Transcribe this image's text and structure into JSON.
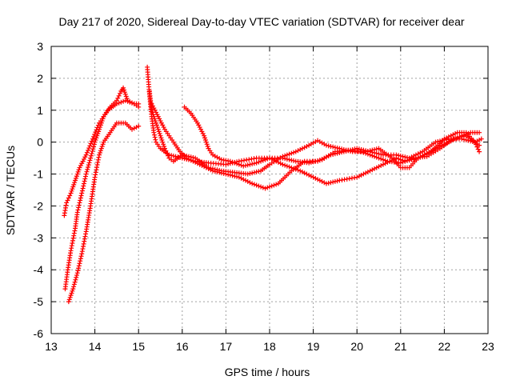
{
  "chart_data": {
    "type": "scatter",
    "title": "Day 217 of 2020, Sidereal Day-to-day VTEC variation (SDTVAR) for receiver dear",
    "xlabel": "GPS time / hours",
    "ylabel": "SDTVAR / TECUs",
    "xlim": [
      13,
      23
    ],
    "ylim": [
      -6,
      3
    ],
    "xticks": [
      "13",
      "14",
      "15",
      "16",
      "17",
      "18",
      "19",
      "20",
      "21",
      "22",
      "23"
    ],
    "yticks": [
      "-6",
      "-5",
      "-4",
      "-3",
      "-2",
      "-1",
      "0",
      "1",
      "2",
      "3"
    ],
    "grid": true,
    "marker": "plus",
    "color": "#ff0000",
    "series": [
      {
        "name": "track-1",
        "points": [
          [
            13.3,
            -2.3
          ],
          [
            13.35,
            -1.9
          ],
          [
            13.45,
            -1.6
          ],
          [
            13.55,
            -1.2
          ],
          [
            13.65,
            -0.8
          ],
          [
            13.8,
            -0.4
          ],
          [
            13.95,
            0.1
          ],
          [
            14.1,
            0.6
          ],
          [
            14.3,
            1.0
          ],
          [
            14.5,
            1.2
          ],
          [
            14.7,
            1.3
          ],
          [
            14.9,
            1.2
          ],
          [
            15.0,
            1.1
          ]
        ]
      },
      {
        "name": "track-2",
        "points": [
          [
            13.32,
            -4.6
          ],
          [
            13.38,
            -4.0
          ],
          [
            13.45,
            -3.4
          ],
          [
            13.55,
            -2.7
          ],
          [
            13.6,
            -2.2
          ],
          [
            13.7,
            -1.6
          ],
          [
            13.8,
            -1.0
          ],
          [
            13.9,
            -0.5
          ],
          [
            14.0,
            0.0
          ],
          [
            14.1,
            0.4
          ],
          [
            14.2,
            0.8
          ],
          [
            14.35,
            1.1
          ],
          [
            14.5,
            1.3
          ],
          [
            14.6,
            1.6
          ],
          [
            14.65,
            1.7
          ],
          [
            14.75,
            1.3
          ],
          [
            14.9,
            1.2
          ],
          [
            15.0,
            1.2
          ]
        ]
      },
      {
        "name": "track-3",
        "points": [
          [
            13.4,
            -5.0
          ],
          [
            13.5,
            -4.6
          ],
          [
            13.6,
            -4.1
          ],
          [
            13.7,
            -3.5
          ],
          [
            13.8,
            -2.8
          ],
          [
            13.9,
            -2.0
          ],
          [
            14.0,
            -1.1
          ],
          [
            14.1,
            -0.4
          ],
          [
            14.2,
            0.0
          ],
          [
            14.35,
            0.3
          ],
          [
            14.5,
            0.6
          ],
          [
            14.7,
            0.6
          ],
          [
            14.85,
            0.4
          ],
          [
            15.0,
            0.5
          ]
        ]
      },
      {
        "name": "track-4",
        "points": [
          [
            15.2,
            2.35
          ],
          [
            15.25,
            1.5
          ],
          [
            15.3,
            0.8
          ],
          [
            15.35,
            0.3
          ],
          [
            15.4,
            0.0
          ],
          [
            15.5,
            -0.2
          ],
          [
            15.7,
            -0.4
          ],
          [
            16.0,
            -0.5
          ],
          [
            16.3,
            -0.6
          ],
          [
            16.6,
            -0.65
          ],
          [
            17.0,
            -0.7
          ],
          [
            17.3,
            -0.6
          ],
          [
            17.7,
            -0.5
          ],
          [
            18.0,
            -0.5
          ],
          [
            18.3,
            -0.7
          ],
          [
            18.7,
            -0.9
          ],
          [
            19.0,
            -1.1
          ],
          [
            19.3,
            -1.3
          ],
          [
            19.6,
            -1.2
          ],
          [
            20.0,
            -1.1
          ],
          [
            20.3,
            -0.9
          ],
          [
            20.6,
            -0.7
          ],
          [
            20.9,
            -0.5
          ],
          [
            21.1,
            -0.6
          ],
          [
            21.4,
            -0.5
          ],
          [
            21.8,
            -0.2
          ],
          [
            22.1,
            0.0
          ],
          [
            22.4,
            0.2
          ],
          [
            22.6,
            0.3
          ],
          [
            22.8,
            0.3
          ]
        ]
      },
      {
        "name": "track-5",
        "points": [
          [
            15.25,
            1.6
          ],
          [
            15.3,
            1.0
          ],
          [
            15.4,
            0.6
          ],
          [
            15.5,
            0.2
          ],
          [
            15.6,
            -0.2
          ],
          [
            15.7,
            -0.5
          ],
          [
            15.8,
            -0.6
          ],
          [
            16.0,
            -0.4
          ],
          [
            16.3,
            -0.5
          ],
          [
            16.6,
            -0.8
          ],
          [
            16.9,
            -0.9
          ],
          [
            17.2,
            -0.95
          ],
          [
            17.5,
            -1.0
          ],
          [
            17.8,
            -0.9
          ],
          [
            18.0,
            -0.7
          ],
          [
            18.3,
            -0.45
          ],
          [
            18.6,
            -0.3
          ],
          [
            18.9,
            -0.1
          ],
          [
            19.1,
            0.05
          ],
          [
            19.3,
            -0.1
          ],
          [
            19.6,
            -0.2
          ],
          [
            19.9,
            -0.3
          ],
          [
            20.2,
            -0.3
          ],
          [
            20.5,
            -0.2
          ],
          [
            20.8,
            -0.5
          ],
          [
            21.0,
            -0.8
          ],
          [
            21.2,
            -0.8
          ],
          [
            21.4,
            -0.5
          ],
          [
            21.7,
            -0.3
          ],
          [
            22.0,
            0.1
          ],
          [
            22.3,
            0.3
          ],
          [
            22.5,
            0.3
          ],
          [
            22.7,
            0.0
          ],
          [
            22.8,
            -0.3
          ]
        ]
      },
      {
        "name": "track-6",
        "points": [
          [
            15.3,
            1.2
          ],
          [
            15.45,
            0.8
          ],
          [
            15.6,
            0.4
          ],
          [
            15.8,
            0.0
          ],
          [
            15.95,
            -0.3
          ],
          [
            16.1,
            -0.5
          ],
          [
            16.4,
            -0.7
          ],
          [
            16.7,
            -0.9
          ],
          [
            17.0,
            -1.0
          ],
          [
            17.3,
            -1.1
          ],
          [
            17.6,
            -1.3
          ],
          [
            17.9,
            -1.45
          ],
          [
            18.2,
            -1.3
          ],
          [
            18.5,
            -0.9
          ],
          [
            18.8,
            -0.6
          ],
          [
            19.1,
            -0.6
          ],
          [
            19.4,
            -0.4
          ],
          [
            19.7,
            -0.3
          ],
          [
            20.0,
            -0.2
          ],
          [
            20.3,
            -0.3
          ],
          [
            20.6,
            -0.4
          ],
          [
            20.9,
            -0.4
          ],
          [
            21.2,
            -0.5
          ],
          [
            21.5,
            -0.3
          ],
          [
            21.8,
            0.0
          ],
          [
            22.1,
            0.1
          ],
          [
            22.4,
            0.1
          ],
          [
            22.7,
            0.0
          ],
          [
            22.85,
            0.1
          ]
        ]
      },
      {
        "name": "track-7",
        "points": [
          [
            16.05,
            1.1
          ],
          [
            16.2,
            0.9
          ],
          [
            16.35,
            0.6
          ],
          [
            16.5,
            0.2
          ],
          [
            16.6,
            -0.2
          ],
          [
            16.7,
            -0.4
          ],
          [
            16.9,
            -0.55
          ],
          [
            17.1,
            -0.6
          ],
          [
            17.4,
            -0.75
          ],
          [
            17.7,
            -0.65
          ],
          [
            18.0,
            -0.5
          ],
          [
            18.3,
            -0.5
          ],
          [
            18.6,
            -0.6
          ],
          [
            18.9,
            -0.65
          ],
          [
            19.2,
            -0.55
          ],
          [
            19.5,
            -0.3
          ],
          [
            19.8,
            -0.25
          ],
          [
            20.1,
            -0.3
          ],
          [
            20.4,
            -0.45
          ],
          [
            20.7,
            -0.6
          ],
          [
            21.0,
            -0.65
          ],
          [
            21.3,
            -0.5
          ],
          [
            21.6,
            -0.45
          ],
          [
            21.9,
            -0.2
          ],
          [
            22.2,
            0.1
          ],
          [
            22.5,
            0.2
          ],
          [
            22.8,
            -0.1
          ]
        ]
      }
    ]
  }
}
